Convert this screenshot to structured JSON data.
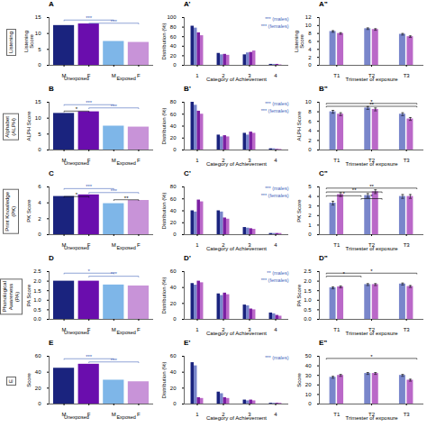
{
  "chart_data": [
    {
      "type": "bar",
      "title": "A",
      "row_label": "Listening",
      "categories": [
        "M",
        "F",
        "M",
        "F"
      ],
      "values": [
        12.5,
        13.0,
        7.5,
        7.2
      ],
      "colors": [
        "#1a237e",
        "#6a0dad",
        "#7eb6e8",
        "#c893d8"
      ],
      "ylim": [
        0,
        15
      ],
      "yticks": [
        0,
        5,
        10,
        15
      ],
      "ylabel": "Listening\nScore",
      "group_labels": [
        "Unexposed",
        "Exposed"
      ],
      "annotations": [
        {
          "text": "***",
          "x1": 0,
          "x2": 2,
          "y": 14.0,
          "color": "#4466bb"
        },
        {
          "text": "***",
          "x1": 1,
          "x2": 3,
          "y": 13.0,
          "color": "#4466bb"
        }
      ]
    },
    {
      "type": "bar",
      "title": "A’",
      "categories": [
        "1",
        "2",
        "3",
        "4"
      ],
      "series": [
        {
          "color": "#1a237e",
          "values": [
            82,
            25,
            22,
            2
          ]
        },
        {
          "color": "#7986cb",
          "values": [
            78,
            22,
            26,
            2
          ]
        },
        {
          "color": "#7b1fa2",
          "values": [
            68,
            23,
            27,
            2
          ]
        },
        {
          "color": "#ba68c8",
          "values": [
            62,
            21,
            30,
            1
          ]
        }
      ],
      "ylim": [
        0,
        100
      ],
      "yticks": [
        0,
        20,
        40,
        60,
        80,
        100
      ],
      "xlabel": "Category of Achievement",
      "ylabel": "Distribution (%)",
      "annotations": [
        {
          "text": "*** (males)",
          "color": "#4466bb"
        },
        {
          "text": "*** (females)",
          "color": "#4466bb"
        }
      ]
    },
    {
      "type": "bar",
      "title": "A”",
      "categories": [
        "T1",
        "T2",
        "T3"
      ],
      "series": [
        {
          "color": "#7986cb",
          "values": [
            8.5,
            9.2,
            7.8
          ],
          "errors": [
            0.2,
            0.2,
            0.2
          ]
        },
        {
          "color": "#ba68c8",
          "values": [
            8.0,
            9.0,
            7.2
          ],
          "errors": [
            0.2,
            0.2,
            0.2
          ]
        }
      ],
      "ylim": [
        0,
        12
      ],
      "yticks": [
        0,
        2,
        4,
        6,
        8,
        10,
        12
      ],
      "xlabel": "Trimester of exposure",
      "ylabel": "Listening\nScore"
    },
    {
      "type": "bar",
      "title": "B",
      "row_label": "Alphabet\n(ALPH)",
      "categories": [
        "M",
        "F",
        "M",
        "F"
      ],
      "values": [
        11.5,
        12.0,
        7.5,
        7.2
      ],
      "colors": [
        "#1a237e",
        "#6a0dad",
        "#7eb6e8",
        "#c893d8"
      ],
      "ylim": [
        0,
        15
      ],
      "yticks": [
        0,
        5,
        10,
        15
      ],
      "ylabel": "ALPH Score",
      "group_labels": [
        "Unexposed",
        "Exposed"
      ],
      "annotations": [
        {
          "text": "***",
          "x1": 0,
          "x2": 2,
          "y": 14.0,
          "color": "#4466bb"
        },
        {
          "text": "***",
          "x1": 1,
          "x2": 3,
          "y": 13.0,
          "color": "#4466bb"
        },
        {
          "text": "*",
          "x1": 0,
          "x2": 1,
          "y": 12.0,
          "color": "black"
        }
      ]
    },
    {
      "type": "bar",
      "title": "B’",
      "categories": [
        "1",
        "2",
        "3",
        "4"
      ],
      "series": [
        {
          "color": "#1a237e",
          "values": [
            80,
            25,
            28,
            2
          ]
        },
        {
          "color": "#7986cb",
          "values": [
            75,
            22,
            25,
            2
          ]
        },
        {
          "color": "#7b1fa2",
          "values": [
            65,
            24,
            30,
            1
          ]
        },
        {
          "color": "#ba68c8",
          "values": [
            60,
            22,
            28,
            1
          ]
        }
      ],
      "ylim": [
        0,
        80
      ],
      "yticks": [
        0,
        20,
        40,
        60,
        80
      ],
      "xlabel": "Category of Achievement",
      "ylabel": "Distribution (%)",
      "annotations": [
        {
          "text": "*** (males)",
          "color": "#4466bb"
        },
        {
          "text": "*** (females)",
          "color": "#4466bb"
        }
      ]
    },
    {
      "type": "bar",
      "title": "B”",
      "categories": [
        "T1",
        "T2",
        "T3"
      ],
      "series": [
        {
          "color": "#7986cb",
          "values": [
            8.0,
            8.8,
            7.5
          ],
          "errors": [
            0.3,
            0.3,
            0.3
          ]
        },
        {
          "color": "#ba68c8",
          "values": [
            7.5,
            8.5,
            6.5
          ],
          "errors": [
            0.3,
            0.3,
            0.3
          ]
        }
      ],
      "ylim": [
        0,
        10
      ],
      "yticks": [
        0,
        2,
        4,
        6,
        8,
        10
      ],
      "xlabel": "Trimester of exposure",
      "ylabel": "ALPH Score",
      "annotations": [
        {
          "text": "*",
          "x1": -0.3,
          "x2": 2.3,
          "y": 9.6,
          "color": "black"
        },
        {
          "text": "**",
          "x1": -0.3,
          "x2": 2.3,
          "y": 9.0,
          "color": "black"
        }
      ]
    },
    {
      "type": "bar",
      "title": "C",
      "row_label": "Print Knowledge\n(PK)",
      "categories": [
        "M",
        "F",
        "M",
        "F"
      ],
      "values": [
        4.8,
        5.0,
        3.9,
        4.3
      ],
      "colors": [
        "#1a237e",
        "#6a0dad",
        "#7eb6e8",
        "#c893d8"
      ],
      "ylim": [
        0,
        6
      ],
      "yticks": [
        0,
        2,
        4,
        6
      ],
      "ylabel": "PK Score",
      "group_labels": [
        "Unexposed",
        "Exposed"
      ],
      "annotations": [
        {
          "text": "***",
          "x1": 0,
          "x2": 2,
          "y": 5.7,
          "color": "#4466bb"
        },
        {
          "text": "***",
          "x1": 1,
          "x2": 3,
          "y": 5.2,
          "color": "#4466bb"
        },
        {
          "text": "*",
          "x1": 0,
          "x2": 1,
          "y": 4.7,
          "color": "black"
        },
        {
          "text": "**",
          "x1": 2,
          "x2": 3,
          "y": 4.3,
          "color": "black"
        }
      ]
    },
    {
      "type": "bar",
      "title": "C’",
      "categories": [
        "1",
        "2",
        "3",
        "4"
      ],
      "series": [
        {
          "color": "#1a237e",
          "values": [
            40,
            40,
            12,
            2
          ]
        },
        {
          "color": "#7986cb",
          "values": [
            38,
            38,
            11,
            2
          ]
        },
        {
          "color": "#7b1fa2",
          "values": [
            58,
            28,
            10,
            2
          ]
        },
        {
          "color": "#ba68c8",
          "values": [
            55,
            26,
            9,
            2
          ]
        }
      ],
      "ylim": [
        0,
        80
      ],
      "yticks": [
        0,
        20,
        40,
        60,
        80
      ],
      "xlabel": "Category of Achievement",
      "ylabel": "Distribution (%)",
      "annotations": [
        {
          "text": "*** (males)",
          "color": "#4466bb"
        },
        {
          "text": "*** (females)",
          "color": "#4466bb"
        }
      ]
    },
    {
      "type": "bar",
      "title": "C”",
      "categories": [
        "T1",
        "T2",
        "T3"
      ],
      "series": [
        {
          "color": "#7986cb",
          "values": [
            3.3,
            4.1,
            4.0
          ],
          "errors": [
            0.2,
            0.2,
            0.2
          ]
        },
        {
          "color": "#ba68c8",
          "values": [
            4.2,
            4.5,
            4.0
          ],
          "errors": [
            0.2,
            0.2,
            0.2
          ]
        }
      ],
      "ylim": [
        0,
        5
      ],
      "yticks": [
        0,
        1,
        2,
        3,
        4,
        5
      ],
      "xlabel": "Trimester of exposure",
      "ylabel": "PK Score",
      "annotations": [
        {
          "text": "**",
          "x1": -0.3,
          "x2": 2.3,
          "y": 4.8,
          "color": "black"
        },
        {
          "text": "**",
          "x1": -0.3,
          "x2": 1.3,
          "y": 4.4,
          "color": "black"
        },
        {
          "text": "*",
          "x1": -0.3,
          "x2": 0.7,
          "y": 4.0,
          "color": "black"
        },
        {
          "text": "*",
          "x1": 0.7,
          "x2": 1.3,
          "y": 3.7,
          "color": "black"
        }
      ]
    },
    {
      "type": "bar",
      "title": "D",
      "row_label": "Phonological\nAwareness\n(PA)",
      "categories": [
        "M",
        "F",
        "M",
        "F"
      ],
      "values": [
        2.0,
        2.0,
        1.8,
        1.75
      ],
      "colors": [
        "#1a237e",
        "#6a0dad",
        "#7eb6e8",
        "#c893d8"
      ],
      "ylim": [
        0,
        2.5
      ],
      "yticks": [
        {
          "value": 0,
          "label": "0.0"
        },
        0.5,
        {
          "value": 1,
          "label": "1.0"
        },
        1.5,
        {
          "value": 2,
          "label": "2.0"
        },
        2.5
      ],
      "ylabel": "PA Score",
      "group_labels": [
        "Unexposed",
        "Exposed"
      ],
      "annotations": [
        {
          "text": "*",
          "x1": 0,
          "x2": 2,
          "y": 2.38,
          "color": "#4466bb"
        },
        {
          "text": "***",
          "x1": 1,
          "x2": 3,
          "y": 2.22,
          "color": "#4466bb"
        }
      ]
    },
    {
      "type": "bar",
      "title": "D’",
      "categories": [
        "1",
        "2",
        "3",
        "4"
      ],
      "series": [
        {
          "color": "#1a237e",
          "values": [
            45,
            32,
            18,
            8
          ]
        },
        {
          "color": "#7986cb",
          "values": [
            43,
            30,
            17,
            7
          ]
        },
        {
          "color": "#7b1fa2",
          "values": [
            48,
            33,
            13,
            5
          ]
        },
        {
          "color": "#ba68c8",
          "values": [
            46,
            31,
            12,
            4
          ]
        }
      ],
      "ylim": [
        0,
        60
      ],
      "yticks": [
        0,
        20,
        40,
        60
      ],
      "xlabel": "Category of Achievement",
      "ylabel": "Distribution (%)",
      "annotations": [
        {
          "text": "** (males)",
          "color": "#4466bb"
        },
        {
          "text": "*** (females)",
          "color": "#4466bb"
        }
      ]
    },
    {
      "type": "bar",
      "title": "D”",
      "categories": [
        "T1",
        "T2",
        "T3"
      ],
      "series": [
        {
          "color": "#7986cb",
          "values": [
            1.65,
            1.82,
            1.85
          ],
          "errors": [
            0.05,
            0.05,
            0.05
          ]
        },
        {
          "color": "#ba68c8",
          "values": [
            1.7,
            1.82,
            1.72
          ],
          "errors": [
            0.05,
            0.05,
            0.05
          ]
        }
      ],
      "ylim": [
        0,
        2.5
      ],
      "yticks": [
        {
          "value": 0,
          "label": "0.0"
        },
        0.5,
        {
          "value": 1,
          "label": "1.0"
        },
        1.5,
        {
          "value": 2,
          "label": "2.0"
        },
        2.5
      ],
      "xlabel": "Trimester of exposure",
      "ylabel": "PA Score",
      "annotations": [
        {
          "text": "*",
          "x1": -0.3,
          "x2": 2.3,
          "y": 2.38,
          "color": "black"
        },
        {
          "text": "*",
          "x1": -0.3,
          "x2": 0.7,
          "y": 2.22,
          "color": "black"
        }
      ]
    },
    {
      "type": "bar",
      "title": "E",
      "row_label": "E",
      "categories": [
        "M",
        "F",
        "M",
        "F"
      ],
      "values": [
        45,
        50,
        30,
        28
      ],
      "colors": [
        "#1a237e",
        "#6a0dad",
        "#7eb6e8",
        "#c893d8"
      ],
      "ylim": [
        0,
        60
      ],
      "yticks": [
        0,
        20,
        40,
        60
      ],
      "ylabel": "Score",
      "group_labels": [
        "Unexposed",
        "Exposed"
      ],
      "annotations": [
        {
          "text": "***",
          "x1": 0,
          "x2": 2,
          "y": 56,
          "color": "#4466bb"
        },
        {
          "text": "***",
          "x1": 1,
          "x2": 3,
          "y": 52,
          "color": "#4466bb"
        }
      ]
    },
    {
      "type": "bar",
      "title": "E’",
      "categories": [
        "1",
        "2",
        "3",
        "4"
      ],
      "series": [
        {
          "color": "#1a237e",
          "values": [
            52,
            15,
            5,
            1
          ]
        },
        {
          "color": "#7986cb",
          "values": [
            48,
            13,
            4,
            1
          ]
        },
        {
          "color": "#7b1fa2",
          "values": [
            8,
            8,
            5,
            1
          ]
        },
        {
          "color": "#ba68c8",
          "values": [
            7,
            7,
            4,
            1
          ]
        }
      ],
      "ylim": [
        0,
        60
      ],
      "yticks": [
        0,
        20,
        40,
        60
      ],
      "xlabel": "Category of Achievement",
      "ylabel": "Distribution (%)",
      "annotations": [
        {
          "text": "*** (males)",
          "color": "#4466bb"
        }
      ]
    },
    {
      "type": "bar",
      "title": "E”",
      "categories": [
        "T1",
        "T2",
        "T3"
      ],
      "series": [
        {
          "color": "#7986cb",
          "values": [
            28,
            32,
            30
          ],
          "errors": [
            1,
            1,
            1
          ]
        },
        {
          "color": "#ba68c8",
          "values": [
            30,
            32,
            25
          ],
          "errors": [
            1,
            1,
            1
          ]
        }
      ],
      "ylim": [
        0,
        50
      ],
      "yticks": [
        0,
        10,
        20,
        30,
        40,
        50
      ],
      "xlabel": "Trimester of exposure",
      "ylabel": "Score",
      "annotations": [
        {
          "text": "*",
          "x1": -0.3,
          "x2": 2.3,
          "y": 47,
          "color": "black"
        }
      ]
    }
  ]
}
